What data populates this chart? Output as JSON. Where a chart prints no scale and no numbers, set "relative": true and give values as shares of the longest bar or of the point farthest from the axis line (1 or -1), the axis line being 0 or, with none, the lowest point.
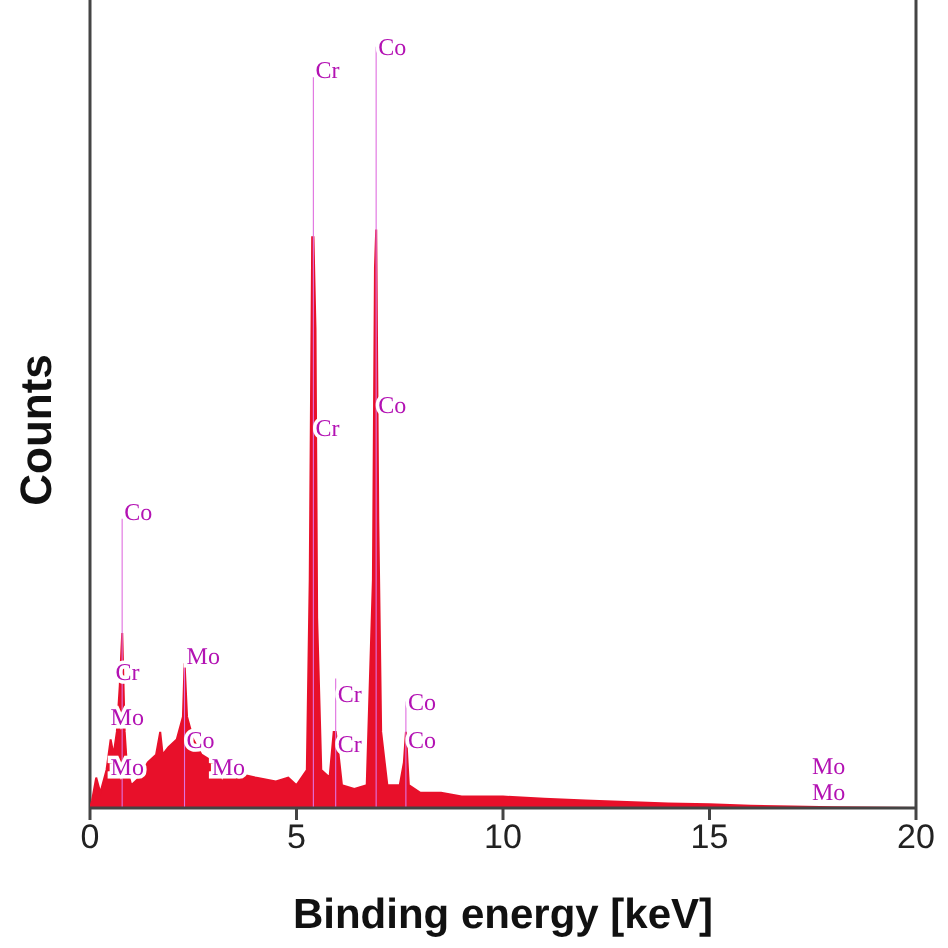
{
  "chart_data": {
    "type": "area",
    "relative": true,
    "xlabel": "Binding energy [keV]",
    "ylabel": "Counts",
    "xlim": [
      0,
      20
    ],
    "xticks": [
      0,
      5,
      10,
      15,
      20
    ],
    "grid": false,
    "legend": false,
    "series": [
      {
        "color": "#e8102a",
        "x": [
          0,
          0.05,
          0.15,
          0.25,
          0.4,
          0.5,
          0.57,
          0.65,
          0.72,
          0.78,
          0.84,
          0.9,
          1.0,
          1.2,
          1.4,
          1.6,
          1.7,
          1.76,
          1.9,
          2.1,
          2.25,
          2.29,
          2.35,
          2.5,
          2.7,
          3.0,
          3.3,
          3.6,
          4.0,
          4.5,
          4.8,
          5.0,
          5.25,
          5.32,
          5.38,
          5.41,
          5.46,
          5.5,
          5.6,
          5.8,
          5.9,
          5.95,
          6.0,
          6.1,
          6.4,
          6.7,
          6.85,
          6.9,
          6.93,
          6.98,
          7.05,
          7.2,
          7.5,
          7.6,
          7.65,
          7.72,
          8.0,
          8.5,
          9,
          10,
          11,
          12,
          13,
          14,
          15,
          16,
          17,
          18,
          20
        ],
        "values": [
          0,
          0.01,
          0.04,
          0.02,
          0.05,
          0.09,
          0.07,
          0.1,
          0.16,
          0.23,
          0.1,
          0.05,
          0.03,
          0.04,
          0.06,
          0.07,
          0.1,
          0.07,
          0.08,
          0.09,
          0.12,
          0.19,
          0.12,
          0.09,
          0.07,
          0.06,
          0.05,
          0.045,
          0.04,
          0.035,
          0.04,
          0.03,
          0.05,
          0.3,
          0.75,
          0.75,
          0.63,
          0.25,
          0.05,
          0.04,
          0.1,
          0.1,
          0.08,
          0.03,
          0.025,
          0.03,
          0.3,
          0.71,
          0.76,
          0.38,
          0.1,
          0.03,
          0.03,
          0.06,
          0.1,
          0.03,
          0.02,
          0.02,
          0.015,
          0.015,
          0.012,
          0.01,
          0.008,
          0.006,
          0.005,
          0.003,
          0.002,
          0.001,
          0
        ]
      },
      {
        "type": "bar",
        "color": "#e070e0",
        "x": [
          0.78,
          2.29,
          5.41,
          5.95,
          6.93,
          7.65
        ],
        "values": [
          0.38,
          0.19,
          0.96,
          0.17,
          1,
          0.14
        ]
      }
    ],
    "annotations": [
      {
        "text": "Co",
        "x": 6.93,
        "y": 1.0
      },
      {
        "text": "Cr",
        "x": 5.41,
        "y": 0.97
      },
      {
        "text": "Cr",
        "x": 5.41,
        "y": 0.5
      },
      {
        "text": "Co",
        "x": 6.93,
        "y": 0.53
      },
      {
        "text": "Co",
        "x": 0.78,
        "y": 0.39
      },
      {
        "text": "Cr",
        "x": 0.57,
        "y": 0.18
      },
      {
        "text": "Mo",
        "x": 2.29,
        "y": 0.2
      },
      {
        "text": "Mo",
        "x": 0.45,
        "y": 0.12
      },
      {
        "text": "Mo",
        "x": 0.45,
        "y": 0.055
      },
      {
        "text": "Co",
        "x": 2.29,
        "y": 0.09
      },
      {
        "text": "Mo",
        "x": 2.9,
        "y": 0.055
      },
      {
        "text": "Cr",
        "x": 5.95,
        "y": 0.15
      },
      {
        "text": "Cr",
        "x": 5.95,
        "y": 0.085
      },
      {
        "text": "Co",
        "x": 7.65,
        "y": 0.14
      },
      {
        "text": "Co",
        "x": 7.65,
        "y": 0.09
      },
      "Mo",
      "Mo"
    ]
  }
}
